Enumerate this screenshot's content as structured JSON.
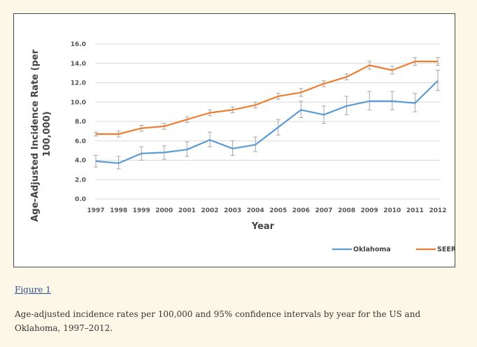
{
  "chart_data": {
    "type": "line",
    "xlabel": "Year",
    "ylabel": "Age-Adjusted Incidence Rate (per 100,000)",
    "ylabel_lines": [
      "Age-Adjusted Incidence Rate (per",
      "100,000)"
    ],
    "ylim": [
      0,
      16
    ],
    "yticks": [
      "0.0",
      "2.0",
      "4.0",
      "6.0",
      "8.0",
      "10.0",
      "12.0",
      "14.0",
      "16.0"
    ],
    "grid": true,
    "legend_position": "bottom-right",
    "categories": [
      "1997",
      "1998",
      "1999",
      "2000",
      "2001",
      "2002",
      "2003",
      "2004",
      "2005",
      "2006",
      "2007",
      "2008",
      "2009",
      "2010",
      "2011",
      "2012"
    ],
    "series": [
      {
        "name": "Oklahoma",
        "color": "#5b9bd5",
        "values": [
          3.9,
          3.7,
          4.7,
          4.8,
          5.1,
          6.1,
          5.2,
          5.6,
          7.4,
          9.2,
          8.7,
          9.6,
          10.1,
          10.1,
          9.9,
          12.2
        ],
        "ci_low": [
          3.3,
          3.1,
          4.0,
          4.1,
          4.4,
          5.4,
          4.5,
          4.9,
          6.6,
          8.4,
          7.8,
          8.7,
          9.2,
          9.2,
          9.0,
          11.2
        ],
        "ci_high": [
          4.5,
          4.4,
          5.4,
          5.5,
          5.9,
          6.9,
          6.0,
          6.4,
          8.2,
          10.1,
          9.6,
          10.6,
          11.1,
          11.1,
          10.9,
          13.3
        ]
      },
      {
        "name": "SEER",
        "color": "#ed7d31",
        "values": [
          6.7,
          6.7,
          7.3,
          7.5,
          8.2,
          8.9,
          9.2,
          9.7,
          10.6,
          11.0,
          11.9,
          12.6,
          13.8,
          13.3,
          14.2,
          14.2
        ],
        "ci_low": [
          6.5,
          6.4,
          7.0,
          7.2,
          7.9,
          8.6,
          8.9,
          9.4,
          10.3,
          10.6,
          11.6,
          12.3,
          13.4,
          12.9,
          13.8,
          13.8
        ],
        "ci_high": [
          6.9,
          7.0,
          7.6,
          7.8,
          8.5,
          9.2,
          9.5,
          10.0,
          10.9,
          11.4,
          12.2,
          12.9,
          14.2,
          13.7,
          14.6,
          14.6
        ]
      }
    ]
  },
  "figure": {
    "link_label": "Figure 1",
    "caption": "Age-adjusted incidence rates per 100,000 and 95% confidence intervals by year for the US and Oklahoma, 1997–2012."
  }
}
